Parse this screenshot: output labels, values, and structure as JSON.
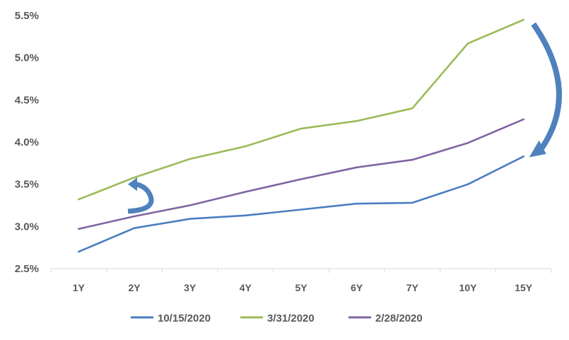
{
  "chart_data": {
    "type": "line",
    "categories": [
      "1Y",
      "2Y",
      "3Y",
      "4Y",
      "5Y",
      "6Y",
      "7Y",
      "10Y",
      "15Y"
    ],
    "y_ticks": [
      "2.5%",
      "3.0%",
      "3.5%",
      "4.0%",
      "4.5%",
      "5.0%",
      "5.5%"
    ],
    "ylim": [
      2.5,
      5.5
    ],
    "grid": false,
    "legend_position": "bottom",
    "series": [
      {
        "name": "10/15/2020",
        "color": "#4a7ebf",
        "values": [
          2.7,
          2.98,
          3.09,
          3.13,
          3.2,
          3.27,
          3.28,
          3.5,
          3.83
        ]
      },
      {
        "name": "3/31/2020",
        "color": "#9bbb59",
        "values": [
          3.32,
          3.58,
          3.8,
          3.95,
          4.16,
          4.25,
          4.4,
          5.17,
          5.45
        ]
      },
      {
        "name": "2/28/2020",
        "color": "#8064a2",
        "values": [
          2.97,
          3.12,
          3.25,
          3.41,
          3.56,
          3.7,
          3.79,
          3.99,
          4.27
        ]
      }
    ],
    "annotations": [
      {
        "type": "curved-arrow",
        "color": "#4f81bd",
        "near_category": "2Y"
      },
      {
        "type": "curved-arrow",
        "color": "#4f81bd",
        "near_category": "15Y"
      }
    ]
  }
}
